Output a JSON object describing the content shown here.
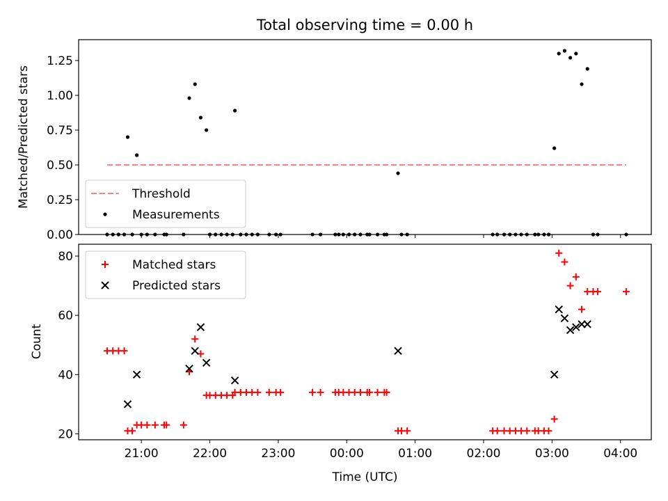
{
  "chart_data": [
    {
      "type": "scatter",
      "title": "Total observing time = 0.00 h",
      "xlabel": "",
      "ylabel": "Matched/Predicted stars",
      "ylim": [
        0,
        1.4
      ],
      "yticks": [
        0.0,
        0.25,
        0.5,
        0.75,
        1.0,
        1.25
      ],
      "ytick_labels": [
        "0.00",
        "0.25",
        "0.50",
        "0.75",
        "1.00",
        "1.25"
      ],
      "xlim": [
        "20:05",
        "04:27"
      ],
      "xticks": [
        "21:00",
        "22:00",
        "23:00",
        "00:00",
        "01:00",
        "02:00",
        "03:00",
        "04:00"
      ],
      "legend_position": "lower-left",
      "series": [
        {
          "name": "Threshold",
          "kind": "dashed-line",
          "color": "#ff8080",
          "points": [
            [
              "20:30",
              0.5
            ],
            [
              "04:05",
              0.5
            ]
          ]
        },
        {
          "name": "Measurements",
          "kind": "dot",
          "color": "#000000",
          "points": [
            [
              "20:30",
              0
            ],
            [
              "20:35",
              0
            ],
            [
              "20:40",
              0
            ],
            [
              "20:45",
              0
            ],
            [
              "20:48",
              0.7
            ],
            [
              "20:52",
              0
            ],
            [
              "20:56",
              0.57
            ],
            [
              "21:00",
              0
            ],
            [
              "21:05",
              0
            ],
            [
              "21:12",
              0
            ],
            [
              "21:20",
              0
            ],
            [
              "21:22",
              0
            ],
            [
              "21:37",
              0
            ],
            [
              "21:42",
              0.98
            ],
            [
              "21:47",
              1.08
            ],
            [
              "21:52",
              0.84
            ],
            [
              "21:57",
              0.75
            ],
            [
              "22:00",
              0
            ],
            [
              "22:05",
              0
            ],
            [
              "22:10",
              0
            ],
            [
              "22:15",
              0
            ],
            [
              "22:20",
              0
            ],
            [
              "22:22",
              0.89
            ],
            [
              "22:27",
              0
            ],
            [
              "22:32",
              0
            ],
            [
              "22:37",
              0
            ],
            [
              "22:42",
              0
            ],
            [
              "22:52",
              0
            ],
            [
              "22:58",
              0
            ],
            [
              "23:02",
              0
            ],
            [
              "23:30",
              0
            ],
            [
              "23:37",
              0
            ],
            [
              "23:50",
              0
            ],
            [
              "23:53",
              0
            ],
            [
              "23:57",
              0
            ],
            [
              "00:02",
              0
            ],
            [
              "00:07",
              0
            ],
            [
              "00:12",
              0
            ],
            [
              "00:18",
              0
            ],
            [
              "00:20",
              0
            ],
            [
              "00:27",
              0
            ],
            [
              "00:33",
              0
            ],
            [
              "00:35",
              0
            ],
            [
              "00:45",
              0.44
            ],
            [
              "00:48",
              0
            ],
            [
              "00:53",
              0
            ],
            [
              "02:08",
              0
            ],
            [
              "02:12",
              0
            ],
            [
              "02:18",
              0
            ],
            [
              "02:23",
              0
            ],
            [
              "02:28",
              0
            ],
            [
              "02:33",
              0
            ],
            [
              "02:38",
              0
            ],
            [
              "02:45",
              0
            ],
            [
              "02:48",
              0
            ],
            [
              "02:53",
              0
            ],
            [
              "02:57",
              0
            ],
            [
              "03:02",
              0.62
            ],
            [
              "03:06",
              1.3
            ],
            [
              "03:11",
              1.32
            ],
            [
              "03:16",
              1.27
            ],
            [
              "03:21",
              1.3
            ],
            [
              "03:26",
              1.08
            ],
            [
              "03:31",
              1.19
            ],
            [
              "03:36",
              0
            ],
            [
              "03:40",
              0
            ],
            [
              "04:05",
              0
            ]
          ]
        }
      ]
    },
    {
      "type": "scatter",
      "title": "",
      "xlabel": "Time (UTC)",
      "ylabel": "Count",
      "ylim": [
        18,
        84
      ],
      "yticks": [
        20,
        40,
        60,
        80
      ],
      "ytick_labels": [
        "20",
        "40",
        "60",
        "80"
      ],
      "xlim": [
        "20:05",
        "04:27"
      ],
      "xticks": [
        "21:00",
        "22:00",
        "23:00",
        "00:00",
        "01:00",
        "02:00",
        "03:00",
        "04:00"
      ],
      "legend_position": "upper-left",
      "series": [
        {
          "name": "Matched stars",
          "kind": "plus",
          "color": "#ff0000",
          "points": [
            [
              "20:30",
              48
            ],
            [
              "20:35",
              48
            ],
            [
              "20:40",
              48
            ],
            [
              "20:45",
              48
            ],
            [
              "20:48",
              21
            ],
            [
              "20:52",
              21
            ],
            [
              "20:56",
              23
            ],
            [
              "21:00",
              23
            ],
            [
              "21:05",
              23
            ],
            [
              "21:12",
              23
            ],
            [
              "21:20",
              23
            ],
            [
              "21:22",
              23
            ],
            [
              "21:37",
              23
            ],
            [
              "21:42",
              41
            ],
            [
              "21:47",
              52
            ],
            [
              "21:52",
              47
            ],
            [
              "21:57",
              33
            ],
            [
              "22:00",
              33
            ],
            [
              "22:05",
              33
            ],
            [
              "22:10",
              33
            ],
            [
              "22:15",
              33
            ],
            [
              "22:20",
              33
            ],
            [
              "22:22",
              34
            ],
            [
              "22:27",
              34
            ],
            [
              "22:32",
              34
            ],
            [
              "22:37",
              34
            ],
            [
              "22:42",
              34
            ],
            [
              "22:52",
              34
            ],
            [
              "22:58",
              34
            ],
            [
              "23:02",
              34
            ],
            [
              "23:30",
              34
            ],
            [
              "23:37",
              34
            ],
            [
              "23:50",
              34
            ],
            [
              "23:53",
              34
            ],
            [
              "23:57",
              34
            ],
            [
              "00:02",
              34
            ],
            [
              "00:07",
              34
            ],
            [
              "00:12",
              34
            ],
            [
              "00:18",
              34
            ],
            [
              "00:20",
              34
            ],
            [
              "00:27",
              34
            ],
            [
              "00:33",
              34
            ],
            [
              "00:35",
              34
            ],
            [
              "00:45",
              21
            ],
            [
              "00:48",
              21
            ],
            [
              "00:53",
              21
            ],
            [
              "02:08",
              21
            ],
            [
              "02:12",
              21
            ],
            [
              "02:18",
              21
            ],
            [
              "02:23",
              21
            ],
            [
              "02:28",
              21
            ],
            [
              "02:33",
              21
            ],
            [
              "02:38",
              21
            ],
            [
              "02:45",
              21
            ],
            [
              "02:48",
              21
            ],
            [
              "02:53",
              21
            ],
            [
              "02:57",
              21
            ],
            [
              "03:02",
              25
            ],
            [
              "03:06",
              81
            ],
            [
              "03:11",
              78
            ],
            [
              "03:16",
              70
            ],
            [
              "03:21",
              73
            ],
            [
              "03:26",
              62
            ],
            [
              "03:31",
              68
            ],
            [
              "03:36",
              68
            ],
            [
              "03:40",
              68
            ],
            [
              "04:05",
              68
            ]
          ]
        },
        {
          "name": "Predicted stars",
          "kind": "x",
          "color": "#000000",
          "points": [
            [
              "20:48",
              30
            ],
            [
              "20:56",
              40
            ],
            [
              "21:42",
              42
            ],
            [
              "21:47",
              48
            ],
            [
              "21:52",
              56
            ],
            [
              "21:57",
              44
            ],
            [
              "22:22",
              38
            ],
            [
              "00:45",
              48
            ],
            [
              "03:02",
              40
            ],
            [
              "03:06",
              62
            ],
            [
              "03:11",
              59
            ],
            [
              "03:16",
              55
            ],
            [
              "03:21",
              56
            ],
            [
              "03:26",
              57
            ],
            [
              "03:31",
              57
            ]
          ]
        }
      ]
    }
  ]
}
